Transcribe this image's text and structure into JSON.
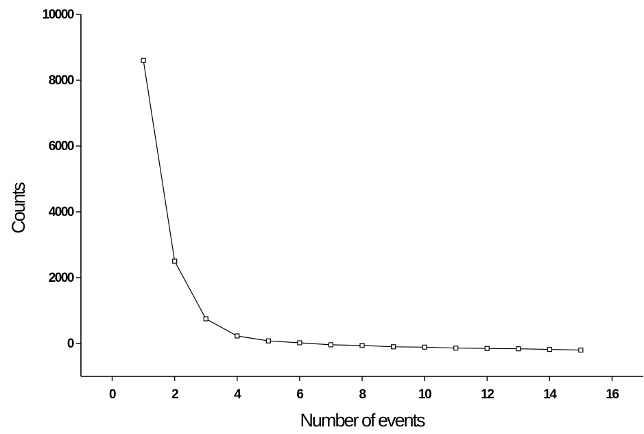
{
  "chart_data": {
    "type": "line",
    "xlabel": "Number of events",
    "ylabel": "Counts",
    "xlim": [
      -1,
      17
    ],
    "ylim": [
      -1000,
      10000
    ],
    "xticks": [
      0,
      2,
      4,
      6,
      8,
      10,
      12,
      14,
      16
    ],
    "yticks": [
      0,
      2000,
      4000,
      6000,
      8000,
      10000
    ],
    "ytick_labels": [
      "0",
      "2000",
      "4000",
      "6000",
      "8000",
      "10000"
    ],
    "grid": false,
    "marker": "open-square",
    "line_color": "#000000",
    "x": [
      1,
      2,
      3,
      4,
      5,
      6,
      7,
      8,
      9,
      10,
      11,
      12,
      13,
      14,
      15
    ],
    "y": [
      8600,
      2500,
      750,
      230,
      80,
      20,
      -40,
      -60,
      -100,
      -110,
      -140,
      -150,
      -160,
      -180,
      -200
    ]
  }
}
